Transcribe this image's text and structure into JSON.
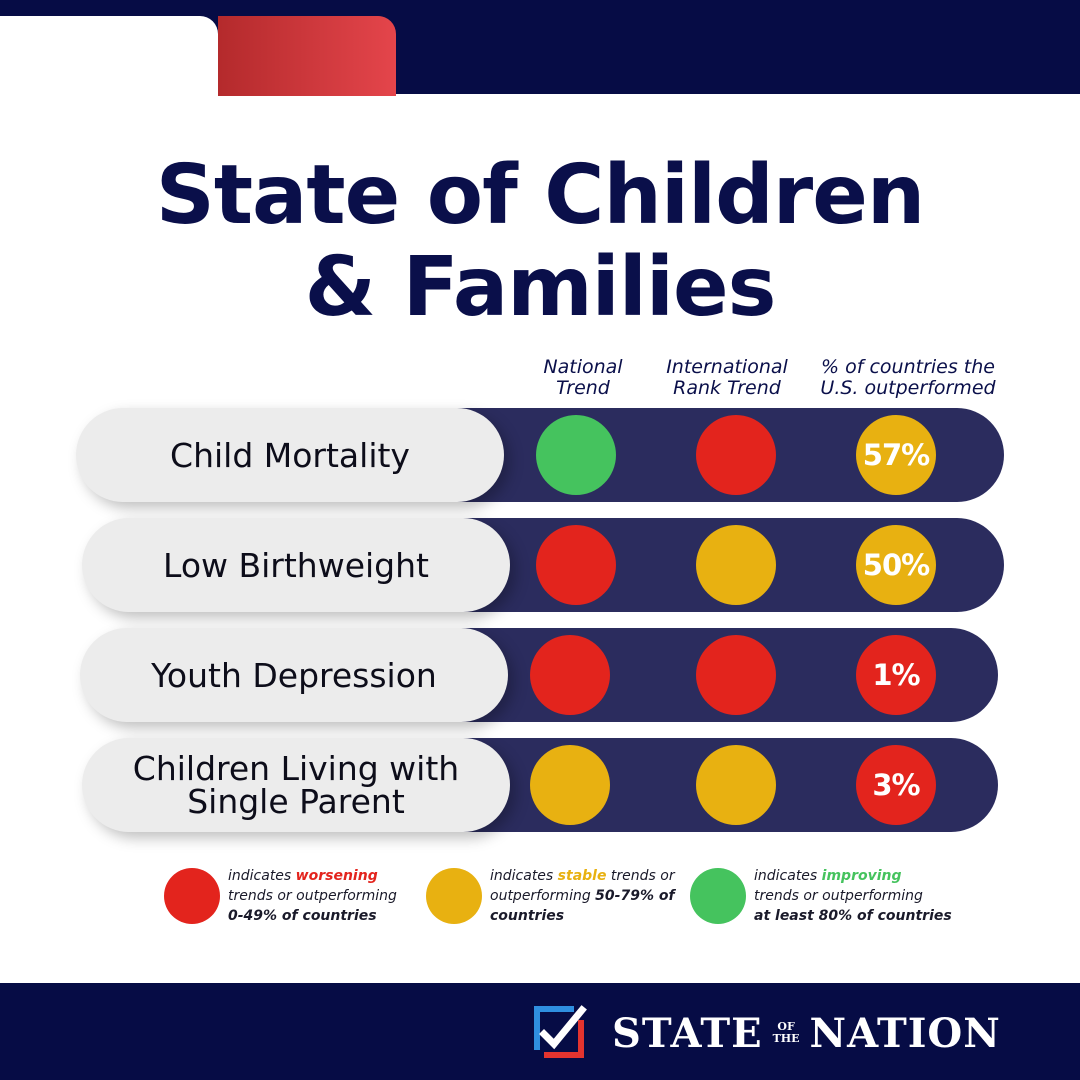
{
  "title": {
    "line1": "State of Children",
    "line2": "& Families"
  },
  "columns": [
    {
      "line1": "National",
      "line2": "Trend"
    },
    {
      "line1": "International",
      "line2": "Rank Trend"
    },
    {
      "line1": "% of countries the",
      "line2": "U.S. outperformed"
    }
  ],
  "colors": {
    "red": "#e3241d",
    "yellow": "#e8b111",
    "green": "#45c35e",
    "navy": "#060c45",
    "bar": "#2b2c5e"
  },
  "rows": [
    {
      "label": "Child Mortality",
      "national_trend": "green",
      "international_rank_trend": "red",
      "percent": "57%",
      "percent_color": "yellow"
    },
    {
      "label": "Low Birthweight",
      "national_trend": "red",
      "international_rank_trend": "yellow",
      "percent": "50%",
      "percent_color": "yellow"
    },
    {
      "label": "Youth Depression",
      "national_trend": "red",
      "international_rank_trend": "red",
      "percent": "1%",
      "percent_color": "red"
    },
    {
      "label": "Children Living with Single Parent",
      "national_trend": "yellow",
      "international_rank_trend": "yellow",
      "percent": "3%",
      "percent_color": "red"
    }
  ],
  "legend": [
    {
      "color": "red",
      "prefix": "indicates ",
      "keyword": "worsening",
      "middle": "trends or outperforming",
      "range": "0-49% of countries"
    },
    {
      "color": "yellow",
      "prefix": "indicates ",
      "keyword": "stable",
      "middle": " trends or outperforming ",
      "range_a": "50-79% of",
      "range_b": "countries"
    },
    {
      "color": "green",
      "prefix": "indicates ",
      "keyword": "improving",
      "middle": "trends or outperforming",
      "range": "at least 80% of countries"
    }
  ],
  "brand": {
    "word1": "STATE",
    "of": "OF",
    "the": "THE",
    "word2": "NATION",
    "logo_icon": "checkmark-box-icon"
  }
}
